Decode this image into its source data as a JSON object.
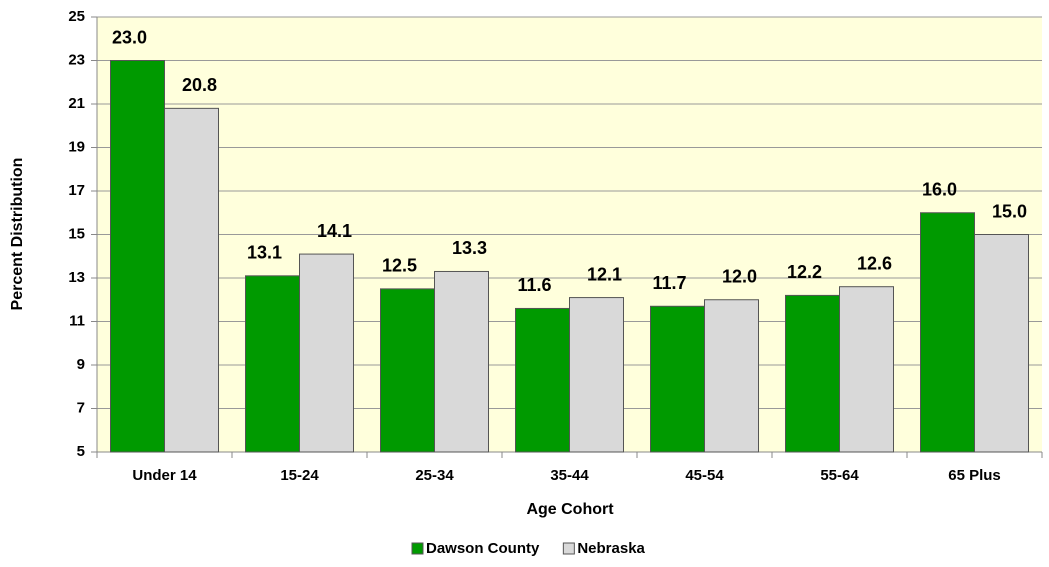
{
  "chart_data": {
    "type": "bar",
    "categories": [
      "Under 14",
      "15-24",
      "25-34",
      "35-44",
      "45-54",
      "55-64",
      "65 Plus"
    ],
    "series": [
      {
        "name": "Dawson County",
        "color": "#009a00",
        "values": [
          23,
          13.1,
          12.5,
          11.6,
          11.7,
          12.2,
          16
        ],
        "value_labels": [
          "23.0",
          "13.1",
          "12.5",
          "11.6",
          "11.7",
          "12.2",
          "16.0"
        ]
      },
      {
        "name": "Nebraska",
        "color": "#d9d9d9",
        "values": [
          20.8,
          14.1,
          13.3,
          12.1,
          12,
          12.6,
          15
        ],
        "value_labels": [
          "20.8",
          "14.1",
          "13.3",
          "12.1",
          "12.0",
          "12.6",
          "15.0"
        ]
      }
    ],
    "x_label": "Age Cohort",
    "y_label": "Percent Distribution",
    "ylim": [
      5,
      25
    ],
    "yticks": [
      5,
      7,
      9,
      11,
      13,
      15,
      17,
      19,
      21,
      23,
      25
    ],
    "grid": true,
    "legend": "bottom"
  }
}
